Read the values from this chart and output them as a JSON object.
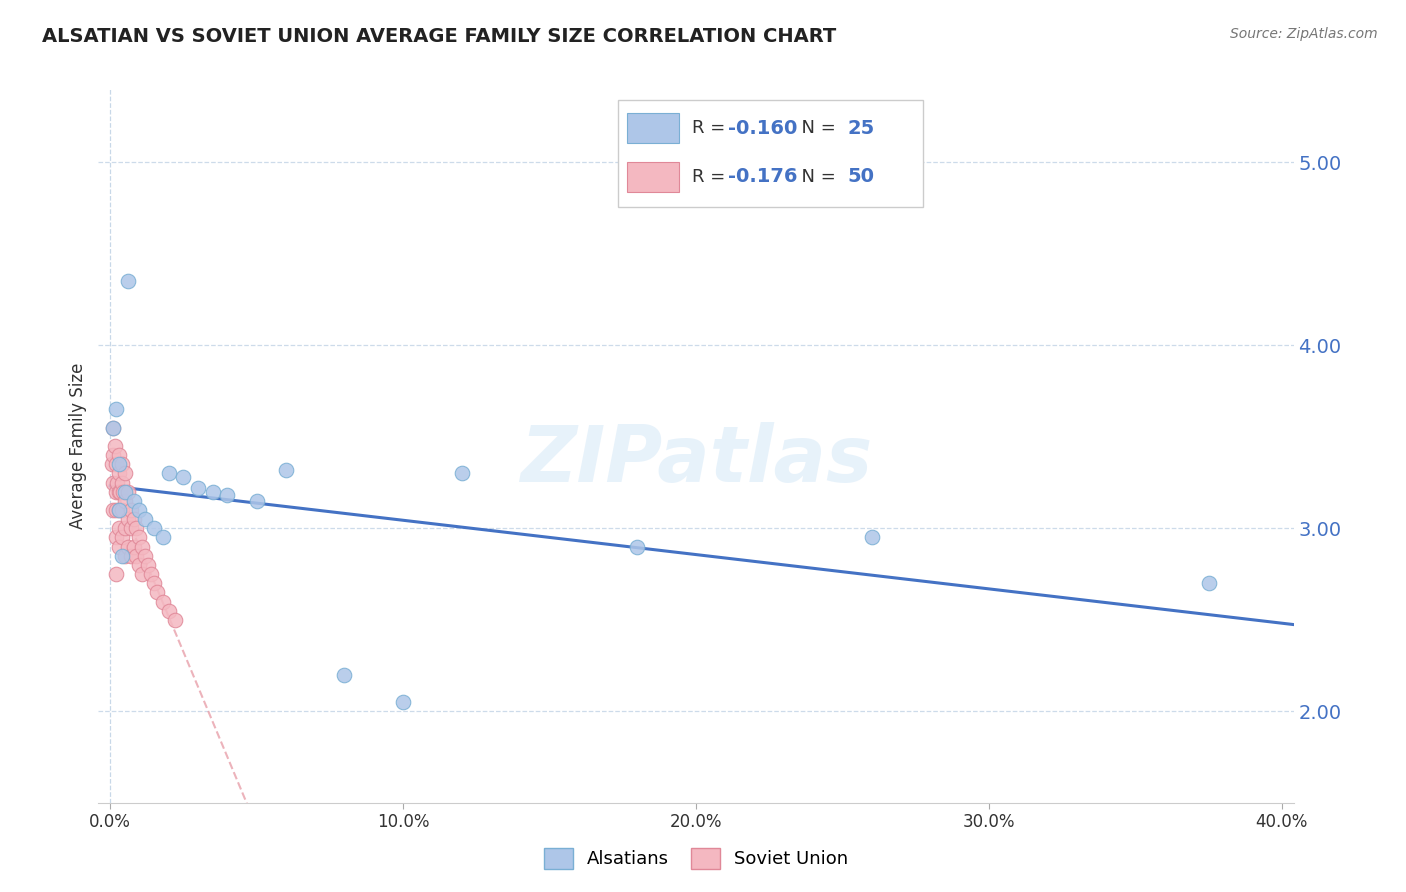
{
  "title": "ALSATIAN VS SOVIET UNION AVERAGE FAMILY SIZE CORRELATION CHART",
  "source": "Source: ZipAtlas.com",
  "ylabel": "Average Family Size",
  "xlim": [
    -0.004,
    0.404
  ],
  "ylim": [
    1.5,
    5.4
  ],
  "yticks": [
    2.0,
    3.0,
    4.0,
    5.0
  ],
  "ytick_labels": [
    "2.00",
    "3.00",
    "4.00",
    "5.00"
  ],
  "xtick_labels": [
    "0.0%",
    "10.0%",
    "20.0%",
    "30.0%",
    "40.0%"
  ],
  "xtick_vals": [
    0.0,
    0.1,
    0.2,
    0.3,
    0.4
  ],
  "watermark": "ZIPatlas",
  "legend_label1": "Alsatians",
  "legend_label2": "Soviet Union",
  "R1": -0.16,
  "N1": 25,
  "R2": -0.176,
  "N2": 50,
  "color1": "#aec6e8",
  "color2": "#f4b8c1",
  "edge1": "#7aafd4",
  "edge2": "#e08898",
  "trendline1_color": "#4472c4",
  "trendline2_color": "#e8a0aa",
  "alsatian_x": [
    0.001,
    0.002,
    0.003,
    0.003,
    0.004,
    0.005,
    0.006,
    0.008,
    0.01,
    0.012,
    0.015,
    0.018,
    0.02,
    0.025,
    0.03,
    0.035,
    0.04,
    0.05,
    0.06,
    0.08,
    0.1,
    0.12,
    0.18,
    0.26,
    0.375
  ],
  "alsatian_y": [
    3.55,
    3.65,
    3.35,
    3.1,
    2.85,
    3.2,
    4.35,
    3.15,
    3.1,
    3.05,
    3.0,
    2.95,
    3.3,
    3.28,
    3.22,
    3.2,
    3.18,
    3.15,
    3.32,
    2.2,
    2.05,
    3.3,
    2.9,
    2.95,
    2.7
  ],
  "soviet_x": [
    0.0005,
    0.001,
    0.001,
    0.001,
    0.001,
    0.0015,
    0.002,
    0.002,
    0.002,
    0.002,
    0.002,
    0.0025,
    0.003,
    0.003,
    0.003,
    0.003,
    0.003,
    0.003,
    0.0035,
    0.004,
    0.004,
    0.004,
    0.004,
    0.0045,
    0.005,
    0.005,
    0.005,
    0.005,
    0.006,
    0.006,
    0.006,
    0.007,
    0.007,
    0.007,
    0.008,
    0.008,
    0.009,
    0.009,
    0.01,
    0.01,
    0.011,
    0.011,
    0.012,
    0.013,
    0.014,
    0.015,
    0.016,
    0.018,
    0.02,
    0.022
  ],
  "soviet_y": [
    3.35,
    3.55,
    3.4,
    3.25,
    3.1,
    3.45,
    3.35,
    3.2,
    3.1,
    2.95,
    2.75,
    3.25,
    3.4,
    3.3,
    3.2,
    3.1,
    3.0,
    2.9,
    3.2,
    3.35,
    3.25,
    3.1,
    2.95,
    3.2,
    3.3,
    3.15,
    3.0,
    2.85,
    3.2,
    3.05,
    2.9,
    3.1,
    3.0,
    2.85,
    3.05,
    2.9,
    3.0,
    2.85,
    2.95,
    2.8,
    2.9,
    2.75,
    2.85,
    2.8,
    2.75,
    2.7,
    2.65,
    2.6,
    2.55,
    2.5
  ]
}
